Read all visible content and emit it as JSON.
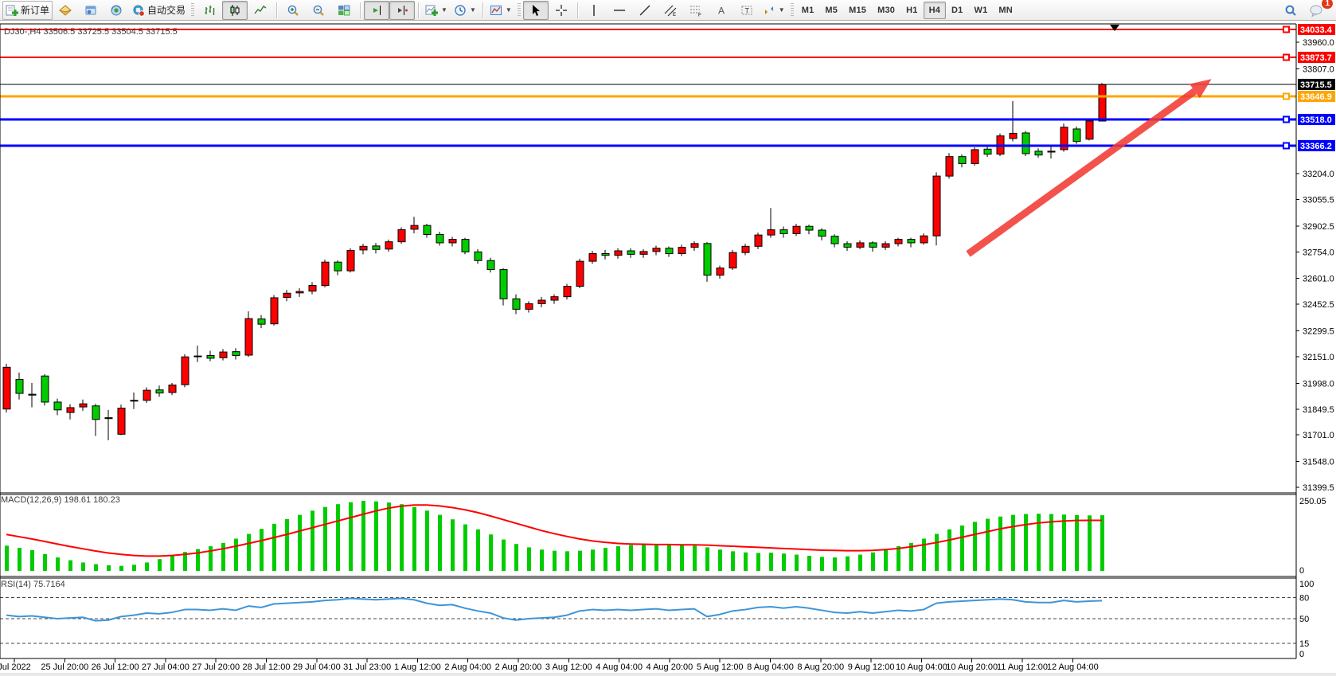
{
  "toolbar": {
    "new_order_label": "新订单",
    "autotrading_label": "自动交易",
    "timeframes": [
      "M1",
      "M5",
      "M15",
      "M30",
      "H1",
      "H4",
      "D1",
      "W1",
      "MN"
    ],
    "active_timeframe": "H4",
    "notification_count": "1"
  },
  "chart": {
    "title": "DJ30-,H4 33506.5 33725.5 33504.5 33715.5",
    "symbol": "DJ30-",
    "timeframe": "H4",
    "ohlc_display": {
      "open": "33506.5",
      "high": "33725.5",
      "low": "33504.5",
      "close": "33715.5"
    }
  },
  "chart_data": {
    "type": "candlestick",
    "colors": {
      "up": "#FF0000",
      "down": "#00CC00",
      "macd_bar": "#00CC00",
      "macd_signal": "#FF0000",
      "rsi_line": "#3E95D8",
      "arrow": "#F23B34"
    },
    "y_ticks": [
      "33960.0",
      "33807.0",
      "33204.0",
      "33055.5",
      "32902.5",
      "32754.0",
      "32601.0",
      "32452.5",
      "32299.5",
      "32151.0",
      "31998.0",
      "31849.5",
      "31701.0",
      "31548.0",
      "31399.5"
    ],
    "levels": [
      {
        "label": "34033.4",
        "price": 34033.4,
        "color": "#FF0000",
        "thickness": 2
      },
      {
        "label": "33873.7",
        "price": 33873.7,
        "color": "#FF0000",
        "thickness": 2
      },
      {
        "label": "33715.5",
        "price": 33715.5,
        "color": "#000000",
        "thickness": 1,
        "current": true
      },
      {
        "label": "33646.9",
        "price": 33646.9,
        "color": "#FFA500",
        "thickness": 3
      },
      {
        "label": "33518.0",
        "price": 33518.0,
        "color": "#0000FF",
        "thickness": 3
      },
      {
        "label": "33366.2",
        "price": 33366.2,
        "color": "#0000FF",
        "thickness": 3
      }
    ],
    "time_labels": [
      "Jul 2022",
      "25 Jul 20:00",
      "26 Jul 12:00",
      "27 Jul 04:00",
      "27 Jul 20:00",
      "28 Jul 12:00",
      "29 Jul 04:00",
      "31 Jul 23:00",
      "1 Aug 12:00",
      "2 Aug 04:00",
      "2 Aug 20:00",
      "3 Aug 12:00",
      "4 Aug 04:00",
      "4 Aug 20:00",
      "5 Aug 12:00",
      "8 Aug 04:00",
      "8 Aug 20:00",
      "9 Aug 12:00",
      "10 Aug 04:00",
      "10 Aug 20:00",
      "11 Aug 12:00",
      "12 Aug 04:00"
    ],
    "ohlc": [
      [
        31850,
        32110,
        31830,
        32090
      ],
      [
        32020,
        32060,
        31905,
        31940
      ],
      [
        31935,
        32000,
        31860,
        31930
      ],
      [
        32040,
        32050,
        31870,
        31890
      ],
      [
        31890,
        31910,
        31815,
        31845
      ],
      [
        31830,
        31878,
        31790,
        31858
      ],
      [
        31862,
        31905,
        31840,
        31880
      ],
      [
        31868,
        31880,
        31695,
        31790
      ],
      [
        31800,
        31845,
        31670,
        31795
      ],
      [
        31705,
        31875,
        31700,
        31855
      ],
      [
        31900,
        31945,
        31850,
        31897
      ],
      [
        31900,
        31975,
        31885,
        31958
      ],
      [
        31960,
        31985,
        31920,
        31942
      ],
      [
        31945,
        32000,
        31930,
        31988
      ],
      [
        31990,
        32165,
        31975,
        32150
      ],
      [
        32155,
        32215,
        32120,
        32152
      ],
      [
        32158,
        32185,
        32125,
        32142
      ],
      [
        32145,
        32195,
        32130,
        32178
      ],
      [
        32180,
        32200,
        32135,
        32158
      ],
      [
        32160,
        32412,
        32150,
        32370
      ],
      [
        32368,
        32390,
        32315,
        32338
      ],
      [
        32340,
        32505,
        32330,
        32490
      ],
      [
        32492,
        32535,
        32470,
        32516
      ],
      [
        32518,
        32545,
        32495,
        32526
      ],
      [
        32528,
        32580,
        32510,
        32561
      ],
      [
        32560,
        32710,
        32550,
        32695
      ],
      [
        32695,
        32705,
        32620,
        32645
      ],
      [
        32645,
        32775,
        32635,
        32762
      ],
      [
        32765,
        32800,
        32740,
        32786
      ],
      [
        32788,
        32805,
        32745,
        32768
      ],
      [
        32770,
        32825,
        32755,
        32812
      ],
      [
        32812,
        32895,
        32800,
        32882
      ],
      [
        32884,
        32956,
        32860,
        32906
      ],
      [
        32906,
        32915,
        32835,
        32854
      ],
      [
        32854,
        32870,
        32790,
        32806
      ],
      [
        32806,
        32840,
        32785,
        32826
      ],
      [
        32826,
        32835,
        32740,
        32754
      ],
      [
        32754,
        32770,
        32685,
        32704
      ],
      [
        32704,
        32720,
        32635,
        32652
      ],
      [
        32652,
        32660,
        32446,
        32484
      ],
      [
        32484,
        32510,
        32396,
        32424
      ],
      [
        32424,
        32470,
        32405,
        32456
      ],
      [
        32456,
        32495,
        32435,
        32476
      ],
      [
        32476,
        32510,
        32455,
        32496
      ],
      [
        32496,
        32570,
        32480,
        32556
      ],
      [
        32556,
        32715,
        32545,
        32700
      ],
      [
        32700,
        32760,
        32685,
        32744
      ],
      [
        32744,
        32765,
        32710,
        32734
      ],
      [
        32734,
        32775,
        32715,
        32760
      ],
      [
        32760,
        32775,
        32720,
        32740
      ],
      [
        32740,
        32770,
        32720,
        32756
      ],
      [
        32756,
        32790,
        32735,
        32775
      ],
      [
        32775,
        32785,
        32725,
        32744
      ],
      [
        32744,
        32795,
        32730,
        32780
      ],
      [
        32780,
        32815,
        32760,
        32802
      ],
      [
        32802,
        32810,
        32582,
        32620
      ],
      [
        32620,
        32675,
        32600,
        32661
      ],
      [
        32661,
        32765,
        32650,
        32750
      ],
      [
        32750,
        32800,
        32735,
        32786
      ],
      [
        32786,
        32865,
        32770,
        32851
      ],
      [
        32851,
        33006,
        32835,
        32881
      ],
      [
        32881,
        32900,
        32835,
        32859
      ],
      [
        32859,
        32915,
        32845,
        32901
      ],
      [
        32901,
        32910,
        32855,
        32879
      ],
      [
        32879,
        32890,
        32820,
        32844
      ],
      [
        32844,
        32855,
        32780,
        32801
      ],
      [
        32801,
        32815,
        32760,
        32781
      ],
      [
        32781,
        32820,
        32770,
        32806
      ],
      [
        32806,
        32815,
        32755,
        32781
      ],
      [
        32781,
        32815,
        32765,
        32801
      ],
      [
        32801,
        32835,
        32785,
        32826
      ],
      [
        32826,
        32835,
        32780,
        32806
      ],
      [
        32806,
        32860,
        32795,
        32846
      ],
      [
        32846,
        33212,
        32791,
        33190
      ],
      [
        33190,
        33322,
        33175,
        33302
      ],
      [
        33302,
        33315,
        33240,
        33262
      ],
      [
        33262,
        33355,
        33250,
        33342
      ],
      [
        33345,
        33370,
        33300,
        33316
      ],
      [
        33316,
        33435,
        33305,
        33421
      ],
      [
        33406,
        33621,
        33390,
        33436
      ],
      [
        33438,
        33450,
        33305,
        33319
      ],
      [
        33333,
        33350,
        33295,
        33311
      ],
      [
        33328,
        33362,
        33291,
        33333
      ],
      [
        33342,
        33492,
        33330,
        33471
      ],
      [
        33461,
        33475,
        33375,
        33389
      ],
      [
        33402,
        33515,
        33395,
        33507
      ],
      [
        33506.5,
        33725.5,
        33504.5,
        33715.5
      ]
    ],
    "macd": {
      "label_full": "MACD(12,26,9) 198.61 180.23",
      "params": "12,26,9",
      "value_main": "198.61",
      "value_signal": "180.23",
      "scale_max": "250.05",
      "scale_min": "0",
      "histogram": [
        90,
        82,
        74,
        60,
        48,
        38,
        30,
        24,
        20,
        18,
        22,
        30,
        42,
        56,
        68,
        78,
        88,
        100,
        115,
        132,
        150,
        168,
        185,
        200,
        215,
        228,
        238,
        245,
        250,
        248,
        244,
        238,
        228,
        215,
        200,
        184,
        166,
        148,
        130,
        112,
        96,
        84,
        76,
        72,
        70,
        72,
        76,
        82,
        88,
        92,
        95,
        96,
        95,
        93,
        90,
        84,
        76,
        70,
        66,
        64,
        65,
        62,
        58,
        54,
        50,
        48,
        52,
        58,
        66,
        76,
        88,
        100,
        115,
        132,
        148,
        162,
        175,
        186,
        194,
        200,
        203,
        204,
        203,
        201,
        199,
        198,
        198.61
      ],
      "signal": [
        130,
        122,
        114,
        105,
        96,
        87,
        79,
        71,
        64,
        59,
        55,
        53,
        53,
        55,
        59,
        64,
        71,
        79,
        88,
        98,
        108,
        119,
        130,
        142,
        154,
        166,
        178,
        190,
        202,
        214,
        224,
        231,
        235,
        235,
        232,
        226,
        218,
        208,
        196,
        183,
        170,
        157,
        144,
        133,
        123,
        114,
        107,
        102,
        98,
        96,
        95,
        94,
        94,
        93,
        93,
        92,
        90,
        88,
        86,
        84,
        82,
        80,
        78,
        76,
        74,
        73,
        72,
        72,
        73,
        76,
        80,
        86,
        93,
        101,
        110,
        120,
        130,
        140,
        150,
        158,
        165,
        171,
        175,
        178,
        180,
        180.4,
        180.23
      ]
    },
    "rsi": {
      "label_full": "RSI(14) 75.7164",
      "period": "14",
      "value": "75.7164",
      "scale": [
        [
          "100",
          100
        ],
        [
          "80",
          80
        ],
        [
          "50",
          50
        ],
        [
          "15",
          15
        ],
        [
          "0",
          0
        ]
      ],
      "dashed_levels": [
        80,
        50,
        15
      ],
      "values": [
        55,
        53,
        54,
        52,
        50,
        51,
        52,
        47,
        48,
        53,
        55,
        58,
        57,
        59,
        63,
        63,
        62,
        64,
        62,
        68,
        66,
        71,
        72,
        73,
        74,
        76,
        77,
        79,
        78,
        77,
        78,
        79,
        77,
        72,
        69,
        70,
        65,
        61,
        58,
        51,
        48,
        50,
        51,
        52,
        55,
        61,
        63,
        62,
        63,
        62,
        63,
        64,
        62,
        63,
        64,
        53,
        56,
        61,
        63,
        66,
        67,
        65,
        67,
        65,
        62,
        59,
        58,
        60,
        58,
        60,
        62,
        61,
        63,
        72,
        74,
        75,
        76,
        77,
        78,
        77,
        74,
        73,
        73,
        76,
        74,
        75,
        75.72
      ]
    },
    "trend_arrow": {
      "bar1": 75.5,
      "price1": 32742,
      "bar2": 94.6,
      "price2": 33748
    },
    "shift_marker": {
      "bar": 87
    }
  }
}
